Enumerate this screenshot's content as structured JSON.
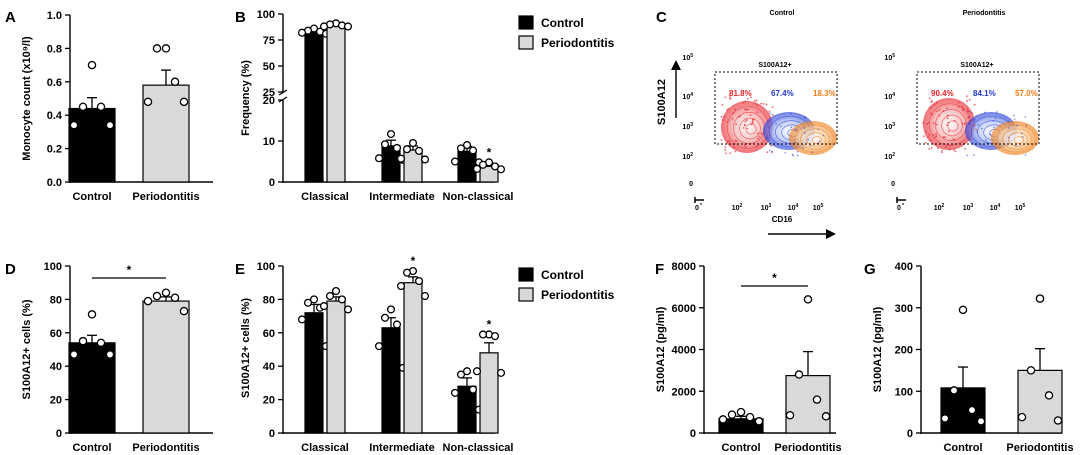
{
  "chart_data": [
    {
      "panel": "A",
      "type": "bar",
      "categories": [
        "Control",
        "Periodontitis"
      ],
      "values": [
        0.44,
        0.58
      ],
      "sem": [
        0.065,
        0.09
      ],
      "fills": [
        "#000000",
        "#d9d9d9"
      ],
      "points": [
        [
          0.7,
          0.45,
          0.45,
          0.34,
          0.34
        ],
        [
          0.8,
          0.8,
          0.6,
          0.48,
          0.48
        ]
      ],
      "ylabel": "Monocyte count (x10⁹/l)",
      "ylim": [
        0,
        1.0
      ],
      "yticks": [
        "0.0",
        "0.2",
        "0.4",
        "0.6",
        "0.8",
        "1.0"
      ],
      "significance": ""
    },
    {
      "panel": "B",
      "type": "bar",
      "categories": [
        "Classical",
        "Intermediate",
        "Non-classical"
      ],
      "series": [
        {
          "name": "Control",
          "values": [
            84,
            8.8,
            7.5
          ],
          "sem": [
            1.5,
            1.4,
            1.2
          ],
          "fill": "#000000",
          "points": [
            [
              86,
              84,
              83,
              82,
              81
            ],
            [
              11.7,
              9.2,
              8.3,
              5.8,
              5.4
            ],
            [
              9.0,
              8.2,
              7.7,
              5.0,
              4.8
            ]
          ]
        },
        {
          "name": "Periodontitis",
          "values": [
            89,
            7.8,
            3.8
          ],
          "sem": [
            1.0,
            1.0,
            0.5
          ],
          "fill": "#d9d9d9",
          "points": [
            [
              91,
              90,
              89,
              88,
              88
            ],
            [
              9.5,
              8.0,
              7.6,
              5.7,
              5.5
            ],
            [
              4.8,
              4.2,
              3.8,
              3.2,
              3.1
            ]
          ]
        }
      ],
      "ylabel": "Frequency (%)",
      "yticks_upper": [
        "25",
        "50",
        "75",
        "100"
      ],
      "yticks_lower": [
        "0",
        "10",
        "20"
      ],
      "axis_break": [
        20,
        25
      ],
      "significance": [
        {
          "category": "Non-classical",
          "series": "Periodontitis",
          "mark": "*"
        }
      ]
    },
    {
      "panel": "C",
      "type": "flow-cytometry",
      "plots": [
        {
          "title": "Control",
          "gate_label": "S100A12+",
          "percentages": [
            {
              "value": "81.8%",
              "color": "#e8232a"
            },
            {
              "value": "67.4%",
              "color": "#1f37d6"
            },
            {
              "value": "18.3%",
              "color": "#f07a12"
            }
          ]
        },
        {
          "title": "Periodontitis",
          "gate_label": "S100A12+",
          "percentages": [
            {
              "value": "90.4%",
              "color": "#e8232a"
            },
            {
              "value": "84.1%",
              "color": "#1f37d6"
            },
            {
              "value": "57.0%",
              "color": "#f07a12"
            }
          ]
        }
      ],
      "xlabel": "CD16",
      "ylabel": "S100A12",
      "xticks": [
        "0",
        "10",
        "10",
        "10",
        "10"
      ],
      "xtick_exps": [
        "",
        "2",
        "3",
        "4",
        "5"
      ],
      "yticks": [
        "0",
        "10",
        "10",
        "10",
        "10"
      ],
      "ytick_exps": [
        "",
        "2",
        "3",
        "4",
        "5"
      ]
    },
    {
      "panel": "D",
      "type": "bar",
      "categories": [
        "Control",
        "Periodontitis"
      ],
      "values": [
        54,
        79
      ],
      "sem": [
        4.5,
        2.5
      ],
      "fills": [
        "#000000",
        "#d9d9d9"
      ],
      "points": [
        [
          71,
          55,
          54,
          47,
          47
        ],
        [
          84,
          82,
          81,
          79,
          73
        ]
      ],
      "ylabel": "S100A12+ cells (%)",
      "ylim": [
        0,
        100
      ],
      "yticks": [
        "0",
        "20",
        "40",
        "60",
        "80",
        "100"
      ],
      "significance": "*"
    },
    {
      "panel": "E",
      "type": "bar",
      "categories": [
        "Classical",
        "Intermediate",
        "Non-classical"
      ],
      "series": [
        {
          "name": "Control",
          "values": [
            72,
            63,
            28
          ],
          "sem": [
            5,
            6,
            5
          ],
          "fill": "#000000",
          "points": [
            [
              80,
              78,
              75,
              68,
              52
            ],
            [
              74,
              69,
              65,
              52,
              39
            ],
            [
              37,
              35,
              26,
              24,
              14
            ]
          ]
        },
        {
          "name": "Periodontitis",
          "values": [
            79,
            90,
            48
          ],
          "sem": [
            2.5,
            3.5,
            6
          ],
          "fill": "#d9d9d9",
          "points": [
            [
              85,
              82,
              80,
              76,
              74
            ],
            [
              97,
              96,
              91,
              88,
              82
            ],
            [
              59,
              59,
              58,
              37,
              36
            ]
          ]
        }
      ],
      "ylabel": "S100A12+ cells (%)",
      "ylim": [
        0,
        100
      ],
      "yticks": [
        "0",
        "20",
        "40",
        "60",
        "80",
        "100"
      ],
      "significance": [
        {
          "category": "Intermediate",
          "series": "Periodontitis",
          "mark": "*"
        },
        {
          "category": "Non-classical",
          "series": "Periodontitis",
          "mark": "*"
        }
      ]
    },
    {
      "panel": "F",
      "type": "bar",
      "categories": [
        "Control",
        "Periodontitis"
      ],
      "values": [
        680,
        2750
      ],
      "sem": [
        120,
        1150
      ],
      "fills": [
        "#000000",
        "#d9d9d9"
      ],
      "points": [
        [
          1000,
          880,
          760,
          650,
          560
        ],
        [
          6400,
          2800,
          1600,
          850,
          800
        ]
      ],
      "ylabel": "S100A12 (pg/ml)",
      "ylim": [
        0,
        8000
      ],
      "yticks": [
        "0",
        "2000",
        "4000",
        "6000",
        "8000"
      ],
      "significance": "*"
    },
    {
      "panel": "G",
      "type": "bar",
      "categories": [
        "Control",
        "Periodontitis"
      ],
      "values": [
        108,
        150
      ],
      "sem": [
        50,
        52
      ],
      "fills": [
        "#000000",
        "#d9d9d9"
      ],
      "points": [
        [
          295,
          102,
          55,
          35,
          28
        ],
        [
          322,
          150,
          90,
          38,
          30
        ]
      ],
      "ylabel": "S100A12 (pg/ml)",
      "ylim": [
        0,
        400
      ],
      "yticks": [
        "0",
        "100",
        "200",
        "300",
        "400"
      ],
      "significance": ""
    }
  ],
  "legends": [
    {
      "panel": "B",
      "entries": [
        "Control",
        "Periodontitis"
      ]
    },
    {
      "panel": "E",
      "entries": [
        "Control",
        "Periodontitis"
      ]
    }
  ],
  "panel_letters": [
    "A",
    "B",
    "C",
    "D",
    "E",
    "F",
    "G"
  ]
}
